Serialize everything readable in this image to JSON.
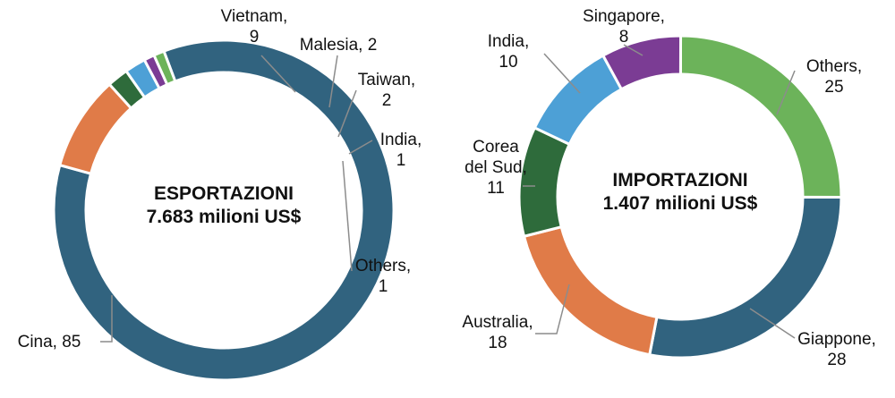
{
  "chart_data": [
    {
      "type": "pie",
      "variant": "donut",
      "title_lines": [
        "ESPORTAZIONI",
        "7.683 milioni US$"
      ],
      "slices": [
        {
          "name": "Cina",
          "value": 85,
          "label_lines": [
            "Cina,  85"
          ],
          "color": "#31637f"
        },
        {
          "name": "Vietnam",
          "value": 9,
          "label_lines": [
            "Vietnam,",
            "9"
          ],
          "color": "#e07b48"
        },
        {
          "name": "Malesia",
          "value": 2,
          "label_lines": [
            "Malesia,  2"
          ],
          "color": "#2e6b3b"
        },
        {
          "name": "Taiwan",
          "value": 2,
          "label_lines": [
            "Taiwan,",
            "2"
          ],
          "color": "#4da0d6"
        },
        {
          "name": "India",
          "value": 1,
          "label_lines": [
            "India,",
            "1"
          ],
          "color": "#7b3c94"
        },
        {
          "name": "Others",
          "value": 1,
          "label_lines": [
            "Others,",
            "1"
          ],
          "color": "#6cb35a"
        }
      ]
    },
    {
      "type": "pie",
      "variant": "donut",
      "title_lines": [
        "IMPORTAZIONI",
        "1.407 milioni US$"
      ],
      "slices": [
        {
          "name": "Others",
          "value": 25,
          "label_lines": [
            "Others,",
            "25"
          ],
          "color": "#6cb35a"
        },
        {
          "name": "Giappone",
          "value": 28,
          "label_lines": [
            "Giappone,",
            "28"
          ],
          "color": "#31637f"
        },
        {
          "name": "Australia",
          "value": 18,
          "label_lines": [
            "Australia,",
            "18"
          ],
          "color": "#e07b48"
        },
        {
          "name": "Corea del Sud",
          "value": 11,
          "label_lines": [
            "Corea",
            "del Sud,",
            "11"
          ],
          "color": "#2e6b3b"
        },
        {
          "name": "India",
          "value": 10,
          "label_lines": [
            "India,",
            "10"
          ],
          "color": "#4da0d6"
        },
        {
          "name": "Singapore",
          "value": 8,
          "label_lines": [
            "Singapore,",
            "8"
          ],
          "color": "#7b3c94"
        }
      ]
    }
  ]
}
